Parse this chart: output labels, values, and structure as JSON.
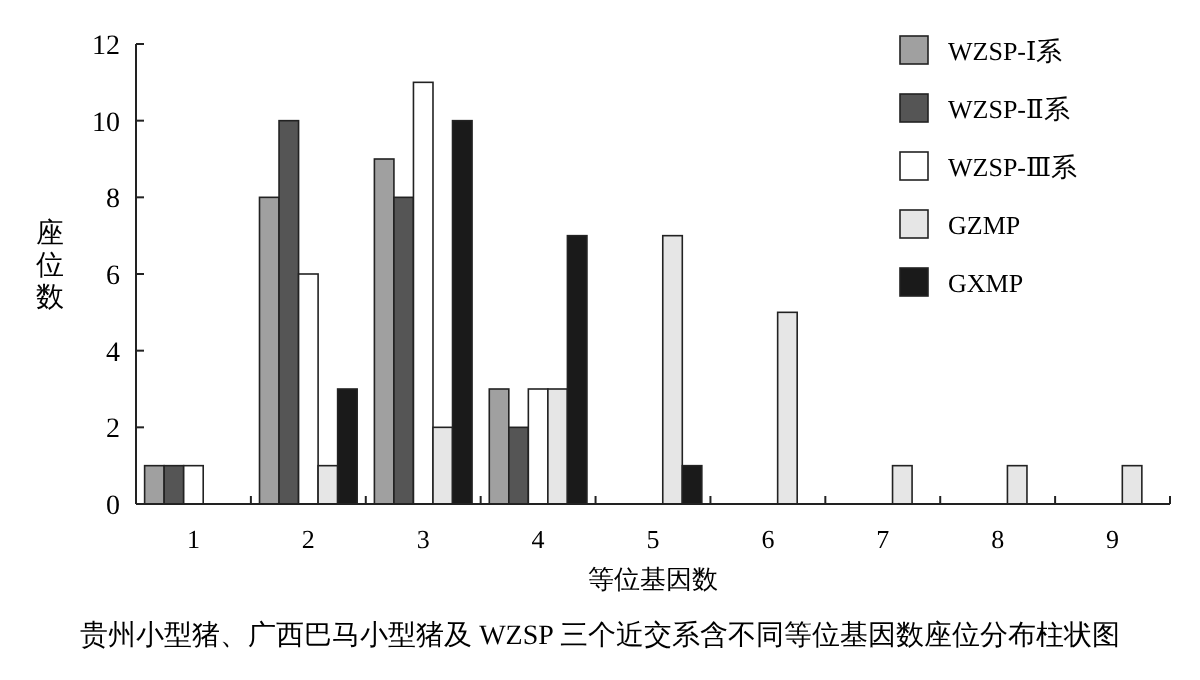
{
  "chart_data": {
    "type": "bar",
    "xlabel": "等位基因数",
    "ylabel": "座位数",
    "categories": [
      "1",
      "2",
      "3",
      "4",
      "5",
      "6",
      "7",
      "8",
      "9"
    ],
    "series": [
      {
        "name": "WZSP-Ⅰ系",
        "color": "#a0a0a0",
        "values": [
          1,
          8,
          9,
          3,
          0,
          0,
          0,
          0,
          0
        ]
      },
      {
        "name": "WZSP-Ⅱ系",
        "color": "#555555",
        "values": [
          1,
          10,
          8,
          2,
          0,
          0,
          0,
          0,
          0
        ]
      },
      {
        "name": "WZSP-Ⅲ系",
        "color": "#ffffff",
        "values": [
          1,
          6,
          11,
          3,
          0,
          0,
          0,
          0,
          0
        ]
      },
      {
        "name": "GZMP",
        "color": "#e6e6e6",
        "values": [
          0,
          1,
          2,
          3,
          7,
          5,
          1,
          1,
          1
        ]
      },
      {
        "name": "GXMP",
        "color": "#1a1a1a",
        "values": [
          0,
          3,
          10,
          7,
          1,
          0,
          0,
          0,
          0
        ]
      }
    ],
    "ylim": [
      0,
      12
    ],
    "yticks": [
      0,
      2,
      4,
      6,
      8,
      10,
      12
    ],
    "legend": "top right",
    "annotations": [
      "贵州小型猪、广西巴马小型猪及 WZSP 三个近交系含不同等位基因数座位分布柱状图"
    ]
  }
}
